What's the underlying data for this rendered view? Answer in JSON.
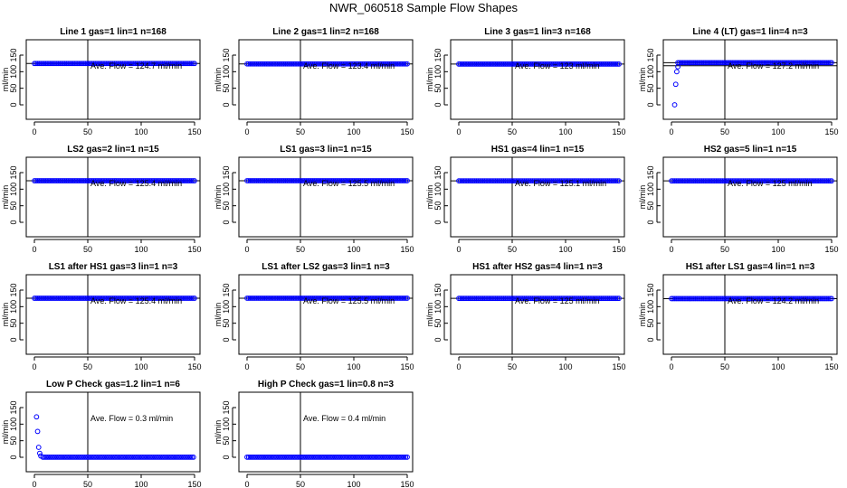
{
  "page": {
    "title": "NWR_060518  Sample Flow Shapes"
  },
  "chart_data": [
    {
      "type": "scatter",
      "title": "Line 1 gas=1 lin=1 n=168",
      "annotation": "Ave. Flow =  124.7  ml/min",
      "ylabel": "ml/min",
      "xlim": [
        0,
        150
      ],
      "ylim": [
        0,
        150
      ],
      "xticks": [
        "0",
        "50",
        "100",
        "150"
      ],
      "yticks": [
        "0",
        "50",
        "100",
        "150"
      ],
      "vline": 50,
      "hlines": [
        124.7
      ],
      "series": [
        {
          "color": "#0000ff",
          "x_range": [
            0,
            150
          ],
          "y": 124.7,
          "initial_points": []
        }
      ]
    },
    {
      "type": "scatter",
      "title": "Line 2 gas=1 lin=2 n=168",
      "annotation": "Ave. Flow =  123.4  ml/min",
      "ylabel": "ml/min",
      "xlim": [
        0,
        150
      ],
      "ylim": [
        0,
        150
      ],
      "xticks": [
        "0",
        "50",
        "100",
        "150"
      ],
      "yticks": [
        "0",
        "50",
        "100",
        "150"
      ],
      "vline": 50,
      "hlines": [
        123.4
      ],
      "series": [
        {
          "color": "#0000ff",
          "x_range": [
            0,
            150
          ],
          "y": 123.4,
          "initial_points": []
        }
      ]
    },
    {
      "type": "scatter",
      "title": "Line 3 gas=1 lin=3 n=168",
      "annotation": "Ave. Flow =  123  ml/min",
      "ylabel": "ml/min",
      "xlim": [
        0,
        150
      ],
      "ylim": [
        0,
        150
      ],
      "xticks": [
        "0",
        "50",
        "100",
        "150"
      ],
      "yticks": [
        "0",
        "50",
        "100",
        "150"
      ],
      "vline": 50,
      "hlines": [
        123
      ],
      "series": [
        {
          "color": "#0000ff",
          "x_range": [
            0,
            150
          ],
          "y": 123,
          "initial_points": []
        }
      ]
    },
    {
      "type": "scatter",
      "title": "Line 4 (LT) gas=1 lin=4 n=3",
      "annotation": "Ave. Flow =  127.2  ml/min",
      "ylabel": "ml/min",
      "xlim": [
        0,
        150
      ],
      "ylim": [
        0,
        150
      ],
      "xticks": [
        "0",
        "50",
        "100",
        "150"
      ],
      "yticks": [
        "0",
        "50",
        "100",
        "150"
      ],
      "vline": 50,
      "hlines": [
        127.2,
        118
      ],
      "series": [
        {
          "color": "#0000ff",
          "x_range": [
            6,
            150
          ],
          "y": 127.2,
          "initial_points": [
            [
              3,
              0
            ],
            [
              4,
              62
            ],
            [
              5,
              100
            ],
            [
              6,
              115
            ]
          ]
        }
      ]
    },
    {
      "type": "scatter",
      "title": "LS2 gas=2 lin=1 n=15",
      "annotation": "Ave. Flow =  125.4  ml/min",
      "ylabel": "ml/min",
      "xlim": [
        0,
        150
      ],
      "ylim": [
        0,
        150
      ],
      "xticks": [
        "0",
        "50",
        "100",
        "150"
      ],
      "yticks": [
        "0",
        "50",
        "100",
        "150"
      ],
      "vline": 50,
      "hlines": [
        125.4
      ],
      "series": [
        {
          "color": "#0000ff",
          "x_range": [
            0,
            150
          ],
          "y": 125.4,
          "initial_points": []
        }
      ]
    },
    {
      "type": "scatter",
      "title": "LS1 gas=3 lin=1 n=15",
      "annotation": "Ave. Flow =  125.5  ml/min",
      "ylabel": "ml/min",
      "xlim": [
        0,
        150
      ],
      "ylim": [
        0,
        150
      ],
      "xticks": [
        "0",
        "50",
        "100",
        "150"
      ],
      "yticks": [
        "0",
        "50",
        "100",
        "150"
      ],
      "vline": 50,
      "hlines": [
        125.5
      ],
      "series": [
        {
          "color": "#0000ff",
          "x_range": [
            0,
            150
          ],
          "y": 125.5,
          "initial_points": []
        }
      ]
    },
    {
      "type": "scatter",
      "title": "HS1 gas=4 lin=1 n=15",
      "annotation": "Ave. Flow =  125.1  ml/min",
      "ylabel": "ml/min",
      "xlim": [
        0,
        150
      ],
      "ylim": [
        0,
        150
      ],
      "xticks": [
        "0",
        "50",
        "100",
        "150"
      ],
      "yticks": [
        "0",
        "50",
        "100",
        "150"
      ],
      "vline": 50,
      "hlines": [
        125.1
      ],
      "series": [
        {
          "color": "#0000ff",
          "x_range": [
            0,
            150
          ],
          "y": 125.1,
          "initial_points": []
        }
      ]
    },
    {
      "type": "scatter",
      "title": "HS2 gas=5 lin=1 n=15",
      "annotation": "Ave. Flow =  125  ml/min",
      "ylabel": "ml/min",
      "xlim": [
        0,
        150
      ],
      "ylim": [
        0,
        150
      ],
      "xticks": [
        "0",
        "50",
        "100",
        "150"
      ],
      "yticks": [
        "0",
        "50",
        "100",
        "150"
      ],
      "vline": 50,
      "hlines": [
        125
      ],
      "series": [
        {
          "color": "#0000ff",
          "x_range": [
            0,
            150
          ],
          "y": 125,
          "initial_points": []
        }
      ]
    },
    {
      "type": "scatter",
      "title": "LS1 after HS1 gas=3 lin=1 n=3",
      "annotation": "Ave. Flow =  125.4  ml/min",
      "ylabel": "ml/min",
      "xlim": [
        0,
        150
      ],
      "ylim": [
        0,
        150
      ],
      "xticks": [
        "0",
        "50",
        "100",
        "150"
      ],
      "yticks": [
        "0",
        "50",
        "100",
        "150"
      ],
      "vline": 50,
      "hlines": [
        125.4
      ],
      "series": [
        {
          "color": "#0000ff",
          "x_range": [
            0,
            150
          ],
          "y": 125.4,
          "initial_points": []
        }
      ]
    },
    {
      "type": "scatter",
      "title": "LS1 after LS2 gas=3 lin=1 n=3",
      "annotation": "Ave. Flow =  125.5  ml/min",
      "ylabel": "ml/min",
      "xlim": [
        0,
        150
      ],
      "ylim": [
        0,
        150
      ],
      "xticks": [
        "0",
        "50",
        "100",
        "150"
      ],
      "yticks": [
        "0",
        "50",
        "100",
        "150"
      ],
      "vline": 50,
      "hlines": [
        125.5
      ],
      "series": [
        {
          "color": "#0000ff",
          "x_range": [
            0,
            150
          ],
          "y": 125.5,
          "initial_points": []
        }
      ]
    },
    {
      "type": "scatter",
      "title": "HS1 after HS2 gas=4 lin=1 n=3",
      "annotation": "Ave. Flow =  125  ml/min",
      "ylabel": "ml/min",
      "xlim": [
        0,
        150
      ],
      "ylim": [
        0,
        150
      ],
      "xticks": [
        "0",
        "50",
        "100",
        "150"
      ],
      "yticks": [
        "0",
        "50",
        "100",
        "150"
      ],
      "vline": 50,
      "hlines": [
        125
      ],
      "series": [
        {
          "color": "#0000ff",
          "x_range": [
            0,
            150
          ],
          "y": 125,
          "initial_points": []
        }
      ]
    },
    {
      "type": "scatter",
      "title": "HS1 after LS1 gas=4 lin=1 n=3",
      "annotation": "Ave. Flow =  124.2  ml/min",
      "ylabel": "ml/min",
      "xlim": [
        0,
        150
      ],
      "ylim": [
        0,
        150
      ],
      "xticks": [
        "0",
        "50",
        "100",
        "150"
      ],
      "yticks": [
        "0",
        "50",
        "100",
        "150"
      ],
      "vline": 50,
      "hlines": [
        124.2
      ],
      "series": [
        {
          "color": "#0000ff",
          "x_range": [
            0,
            150
          ],
          "y": 124.2,
          "initial_points": []
        }
      ]
    },
    {
      "type": "scatter",
      "title": "Low P Check gas=1.2 lin=1 n=6",
      "annotation": "Ave. Flow =  0.3  ml/min",
      "ylabel": "ml/min",
      "xlim": [
        0,
        150
      ],
      "ylim": [
        0,
        150
      ],
      "xticks": [
        "0",
        "50",
        "100",
        "150"
      ],
      "yticks": [
        "0",
        "50",
        "100",
        "150"
      ],
      "vline": 50,
      "hlines": [],
      "series": [
        {
          "color": "#0000ff",
          "x_range": [
            8,
            150
          ],
          "y": 0.3,
          "initial_points": [
            [
              2,
              122
            ],
            [
              3,
              78
            ],
            [
              4,
              30
            ],
            [
              5,
              12
            ],
            [
              6,
              4
            ]
          ]
        }
      ]
    },
    {
      "type": "scatter",
      "title": "High P Check gas=1 lin=0.8 n=3",
      "annotation": "Ave. Flow =  0.4  ml/min",
      "ylabel": "ml/min",
      "xlim": [
        0,
        150
      ],
      "ylim": [
        0,
        150
      ],
      "xticks": [
        "0",
        "50",
        "100",
        "150"
      ],
      "yticks": [
        "0",
        "50",
        "100",
        "150"
      ],
      "vline": 50,
      "hlines": [],
      "series": [
        {
          "color": "#0000ff",
          "x_range": [
            0,
            150
          ],
          "y": 0.4,
          "initial_points": []
        }
      ]
    }
  ]
}
